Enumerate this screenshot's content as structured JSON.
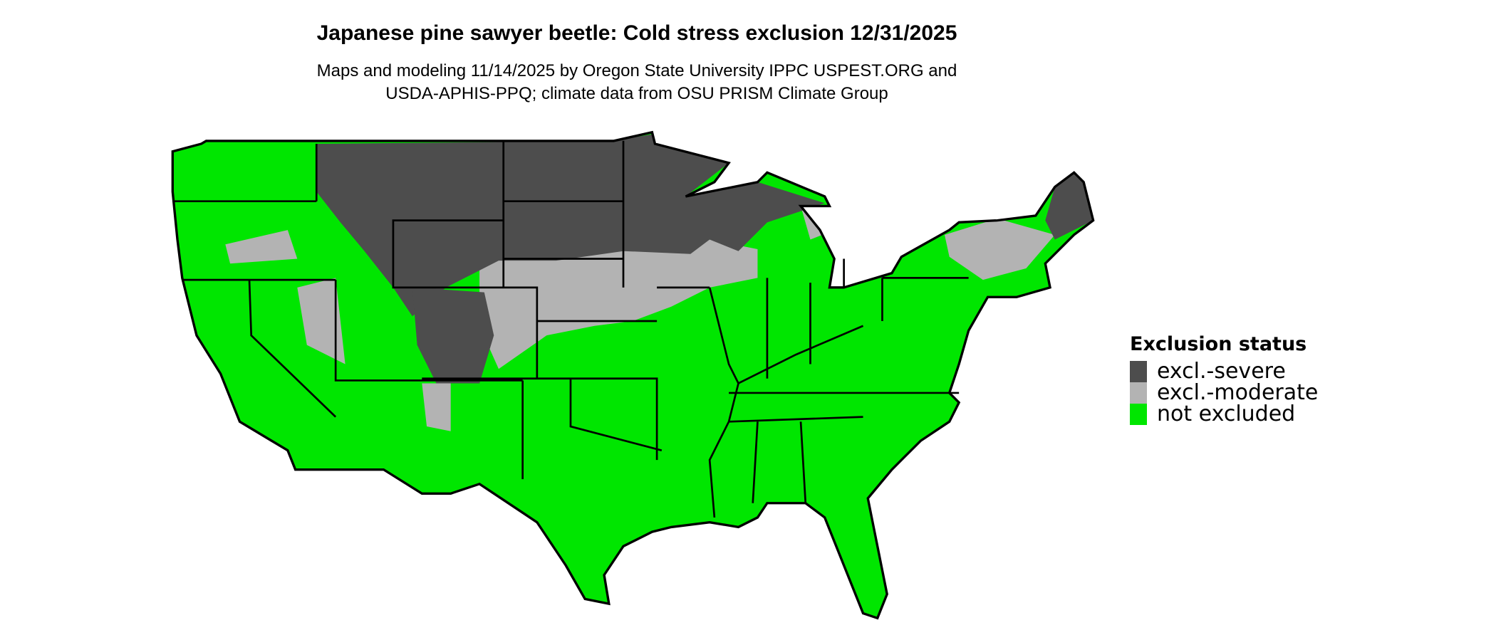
{
  "header": {
    "title": "Japanese pine sawyer beetle: Cold stress exclusion 12/31/2025",
    "subtitle_line1": "Maps and modeling 11/14/2025 by Oregon State University IPPC USPEST.ORG and",
    "subtitle_line2": "USDA-APHIS-PPQ; climate data from OSU PRISM Climate Group"
  },
  "legend": {
    "title": "Exclusion status",
    "items": [
      {
        "label": "excl.-severe",
        "color": "#4d4d4d"
      },
      {
        "label": "excl.-moderate",
        "color": "#b3b3b3"
      },
      {
        "label": "not excluded",
        "color": "#00e600"
      }
    ]
  },
  "map": {
    "region": "Contiguous United States",
    "border_color": "#000000"
  }
}
